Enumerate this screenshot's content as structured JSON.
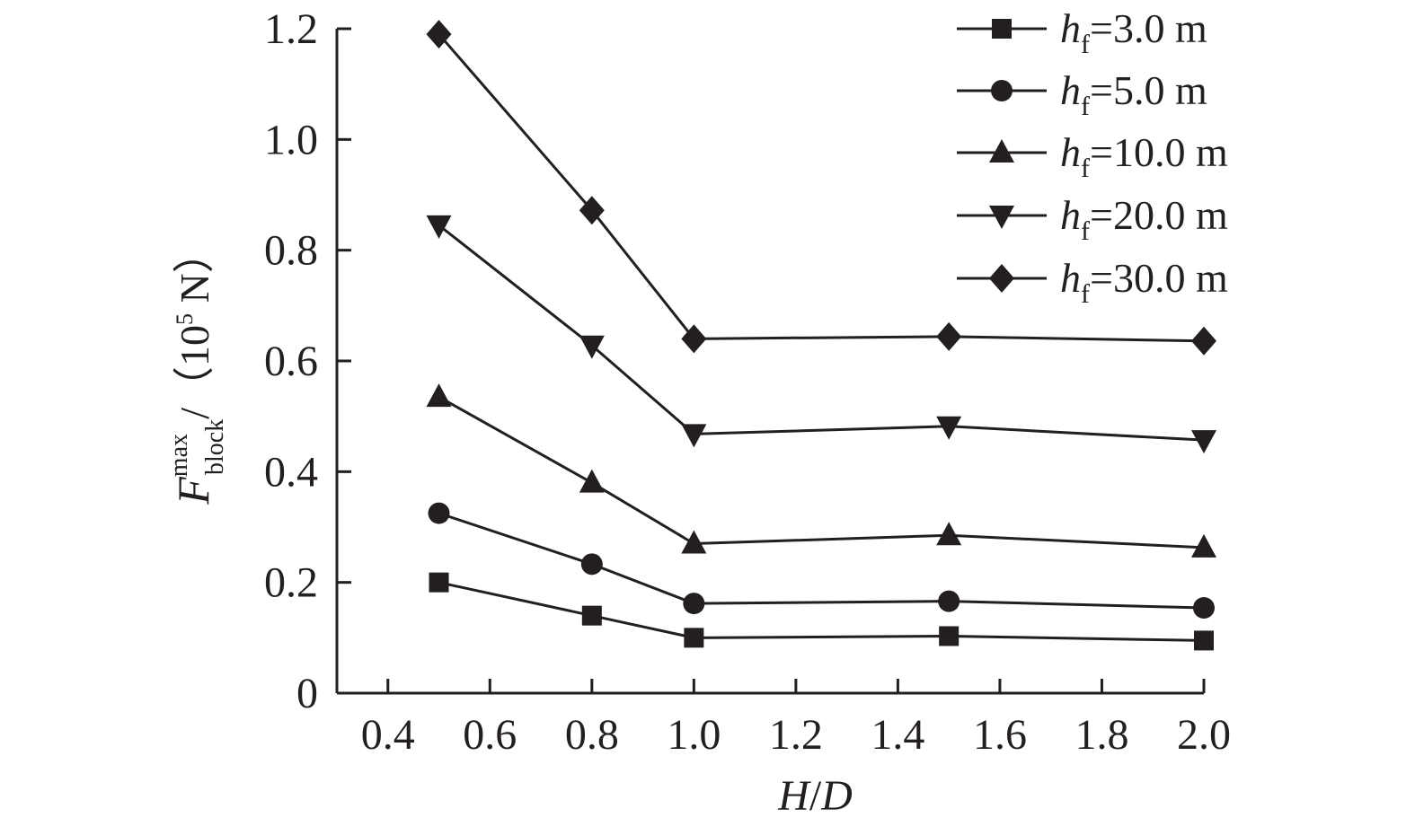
{
  "chart_data": {
    "type": "line",
    "x": [
      0.5,
      0.8,
      1.0,
      1.5,
      2.0
    ],
    "xlim": [
      0.3,
      2.0
    ],
    "ylim": [
      0,
      1.2
    ],
    "xticks": [
      "0.4",
      "0.6",
      "0.8",
      "1.0",
      "1.2",
      "1.4",
      "1.6",
      "1.8",
      "2.0"
    ],
    "xtick_values": [
      0.4,
      0.6,
      0.8,
      1.0,
      1.2,
      1.4,
      1.6,
      1.8,
      2.0
    ],
    "yticks": [
      "0",
      "0.2",
      "0.4",
      "0.6",
      "0.8",
      "1.0",
      "1.2"
    ],
    "ytick_values": [
      0,
      0.2,
      0.4,
      0.6,
      0.8,
      1.0,
      1.2
    ],
    "xlabel": {
      "h": "H",
      "slash": "/",
      "d": "D"
    },
    "ylabel": {
      "f": "F",
      "sup": "max",
      "sub": "block",
      "unit_open": "/（",
      "unit_num": "10",
      "unit_exp": "5",
      "unit_rest": " N）"
    },
    "grid": false,
    "legend": "top-right",
    "series": [
      {
        "h": "h",
        "sub": "f",
        "eq": "=3.0 m",
        "marker": "square",
        "values": [
          0.2,
          0.14,
          0.1,
          0.103,
          0.095
        ]
      },
      {
        "h": "h",
        "sub": "f",
        "eq": "=5.0 m",
        "marker": "circle",
        "values": [
          0.325,
          0.233,
          0.162,
          0.166,
          0.154
        ]
      },
      {
        "h": "h",
        "sub": "f",
        "eq": "=10.0 m",
        "marker": "triangle-up",
        "values": [
          0.535,
          0.38,
          0.27,
          0.285,
          0.263
        ]
      },
      {
        "h": "h",
        "sub": "f",
        "eq": "=20.0 m",
        "marker": "triangle-down",
        "values": [
          0.845,
          0.628,
          0.468,
          0.482,
          0.457
        ]
      },
      {
        "h": "h",
        "sub": "f",
        "eq": "=30.0 m",
        "marker": "diamond",
        "values": [
          1.19,
          0.872,
          0.64,
          0.644,
          0.636
        ]
      }
    ],
    "colors": {
      "line": "#231f20",
      "background": "#ffffff"
    }
  }
}
